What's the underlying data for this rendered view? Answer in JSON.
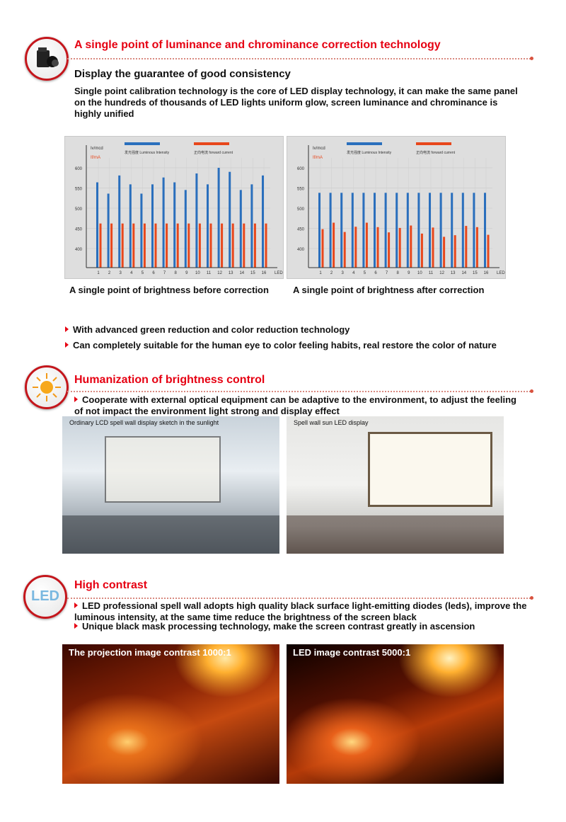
{
  "section1": {
    "icon": "camera-icon",
    "title": "A single point of luminance and chrominance correction technology",
    "subtitle": "Display the guarantee of good consistency",
    "paragraph": "Single point calibration technology is the core of LED display technology, it can make the same panel on the hundreds of thousands of LED lights uniform glow, screen luminance and chrominance is highly unified",
    "captions": [
      "A single point of brightness before correction",
      "A single point of brightness after correction"
    ],
    "bullets": [
      "With advanced green reduction and color reduction technology",
      "Can completely suitable for the human eye to color feeling habits, real restore the color of nature"
    ]
  },
  "section2": {
    "icon": "sun-icon",
    "title": "Humanization of brightness control",
    "bullet": "Cooperate with external optical equipment can be adaptive to the environment, to adjust the feeling of not impact the environment light strong and display effect",
    "photo_captions": [
      "Ordinary LCD spell wall display sketch in the sunlight",
      "Spell wall sun LED display"
    ]
  },
  "section3": {
    "icon": "led-icon",
    "title": "High contrast",
    "bullets": [
      "LED professional spell wall adopts high quality black surface light-emitting diodes (leds), improve the luminous intensity, at the same time reduce the brightness of the screen black",
      "Unique black mask processing technology, make the screen contrast greatly in ascension"
    ],
    "image_captions": [
      "The projection image contrast 1000:1",
      "LED image contrast 5000:1"
    ]
  },
  "colors": {
    "accent": "#e60012",
    "blue_series": "#2a6fbd",
    "red_series": "#e8471c"
  },
  "chart_data": [
    {
      "type": "bar",
      "xlabel": "LED",
      "ylabel": "Iv/mcd",
      "ylabel2": "If/mA",
      "categories": [
        "1",
        "2",
        "3",
        "4",
        "5",
        "6",
        "7",
        "8",
        "9",
        "10",
        "11",
        "12",
        "13",
        "14",
        "15",
        "16"
      ],
      "yticks": [
        400,
        450,
        500,
        550,
        600
      ],
      "ylim": [
        350,
        620
      ],
      "grid": true,
      "legend": "top",
      "series": [
        {
          "name": "发光强度 Luminous Intensity",
          "values": [
            564,
            536,
            581,
            559,
            536,
            559,
            576,
            564,
            545,
            586,
            559,
            600,
            590,
            545,
            559,
            581
          ]
        },
        {
          "name": "正向电流 forward current",
          "values": [
            462,
            462,
            462,
            462,
            462,
            462,
            462,
            462,
            462,
            462,
            462,
            462,
            462,
            462,
            462,
            462
          ]
        }
      ]
    },
    {
      "type": "bar",
      "xlabel": "LED",
      "ylabel": "Iv/mcd",
      "ylabel2": "If/mA",
      "categories": [
        "1",
        "2",
        "3",
        "4",
        "5",
        "6",
        "7",
        "8",
        "9",
        "10",
        "11",
        "12",
        "13",
        "14",
        "15",
        "16"
      ],
      "yticks": [
        400,
        450,
        500,
        550,
        600
      ],
      "ylim": [
        350,
        620
      ],
      "grid": true,
      "legend": "top",
      "series": [
        {
          "name": "发光强度 Luminous Intensity",
          "values": [
            538,
            538,
            538,
            538,
            538,
            538,
            538,
            538,
            538,
            538,
            538,
            538,
            538,
            538,
            538,
            538
          ]
        },
        {
          "name": "正向电流 forward current",
          "values": [
            448,
            464,
            441,
            454,
            464,
            453,
            440,
            451,
            457,
            437,
            452,
            429,
            433,
            456,
            453,
            434
          ]
        }
      ]
    }
  ]
}
